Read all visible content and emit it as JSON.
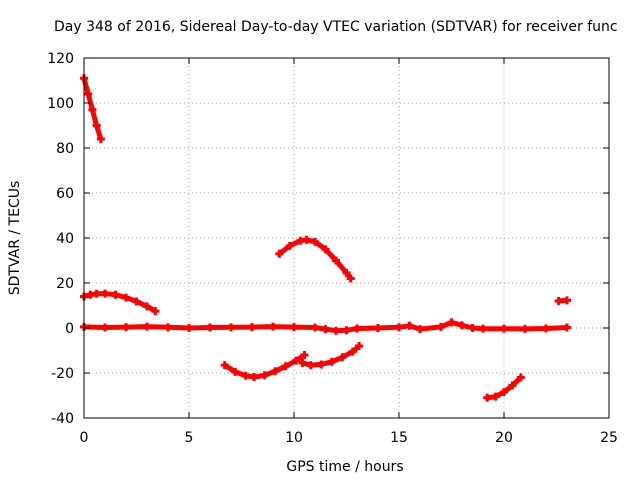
{
  "chart_data": {
    "type": "scatter",
    "title": "Day 348 of 2016, Sidereal Day-to-day VTEC variation (SDTVAR) for receiver func",
    "xlabel": "GPS time / hours",
    "ylabel": "SDTVAR / TECUs",
    "xlim": [
      0,
      25
    ],
    "ylim": [
      -40,
      120
    ],
    "xticks": [
      0,
      5,
      10,
      15,
      20,
      25
    ],
    "yticks": [
      -40,
      -20,
      0,
      20,
      40,
      60,
      80,
      100,
      120
    ],
    "grid": true,
    "color": "#ff0000",
    "series": [
      {
        "name": "seg-a",
        "x": [
          0.0,
          0.2,
          0.4,
          0.6,
          0.8
        ],
        "y": [
          111,
          104,
          97,
          90,
          84
        ]
      },
      {
        "name": "seg-b",
        "x": [
          0.0,
          0.3,
          0.6,
          1.0,
          1.5,
          2.0,
          2.5,
          3.0,
          3.4
        ],
        "y": [
          14,
          14.8,
          15.2,
          15.3,
          14.8,
          13.5,
          11.8,
          9.6,
          7.5
        ]
      },
      {
        "name": "baseline",
        "x": [
          0.0,
          1.0,
          2.0,
          3.0,
          4.0,
          5.0,
          6.0,
          7.0,
          8.0,
          9.0,
          10.0,
          11.0,
          11.5,
          12.0,
          12.5,
          13.0,
          14.0,
          15.0,
          15.5,
          16.0,
          17.0,
          17.5,
          18.0,
          18.5,
          19.0,
          20.0,
          21.0,
          22.0,
          23.0
        ],
        "y": [
          0.5,
          0.2,
          0.4,
          0.6,
          0.3,
          0.0,
          0.2,
          0.3,
          0.4,
          0.6,
          0.4,
          0.2,
          -0.5,
          -1.2,
          -1.0,
          -0.2,
          0.0,
          0.3,
          1.0,
          -0.5,
          0.5,
          2.5,
          1.2,
          0.0,
          -0.3,
          -0.3,
          -0.4,
          -0.2,
          0.2
        ]
      },
      {
        "name": "seg-c",
        "x": [
          9.3,
          9.8,
          10.3,
          10.6,
          11.0,
          11.5,
          12.0,
          12.5,
          12.7
        ],
        "y": [
          33,
          36.5,
          38.8,
          39.2,
          38.3,
          35,
          30,
          24.5,
          22
        ]
      },
      {
        "name": "seg-d",
        "x": [
          6.7,
          7.2,
          7.7,
          8.1,
          8.6,
          9.1,
          9.6,
          10.1,
          10.5
        ],
        "y": [
          -16.5,
          -19.5,
          -21.2,
          -21.8,
          -21.0,
          -19.2,
          -17.0,
          -14.5,
          -12
        ]
      },
      {
        "name": "seg-e",
        "x": [
          10.4,
          10.8,
          11.3,
          11.8,
          12.3,
          12.8,
          13.1
        ],
        "y": [
          -15.5,
          -16.5,
          -16.2,
          -15.0,
          -13.0,
          -10.5,
          -8
        ]
      },
      {
        "name": "seg-f",
        "x": [
          19.2,
          19.6,
          20.0,
          20.4,
          20.8
        ],
        "y": [
          -31,
          -30.5,
          -28.5,
          -25.5,
          -22
        ]
      },
      {
        "name": "seg-g",
        "x": [
          22.6,
          23.0
        ],
        "y": [
          12,
          12.3
        ]
      }
    ]
  }
}
